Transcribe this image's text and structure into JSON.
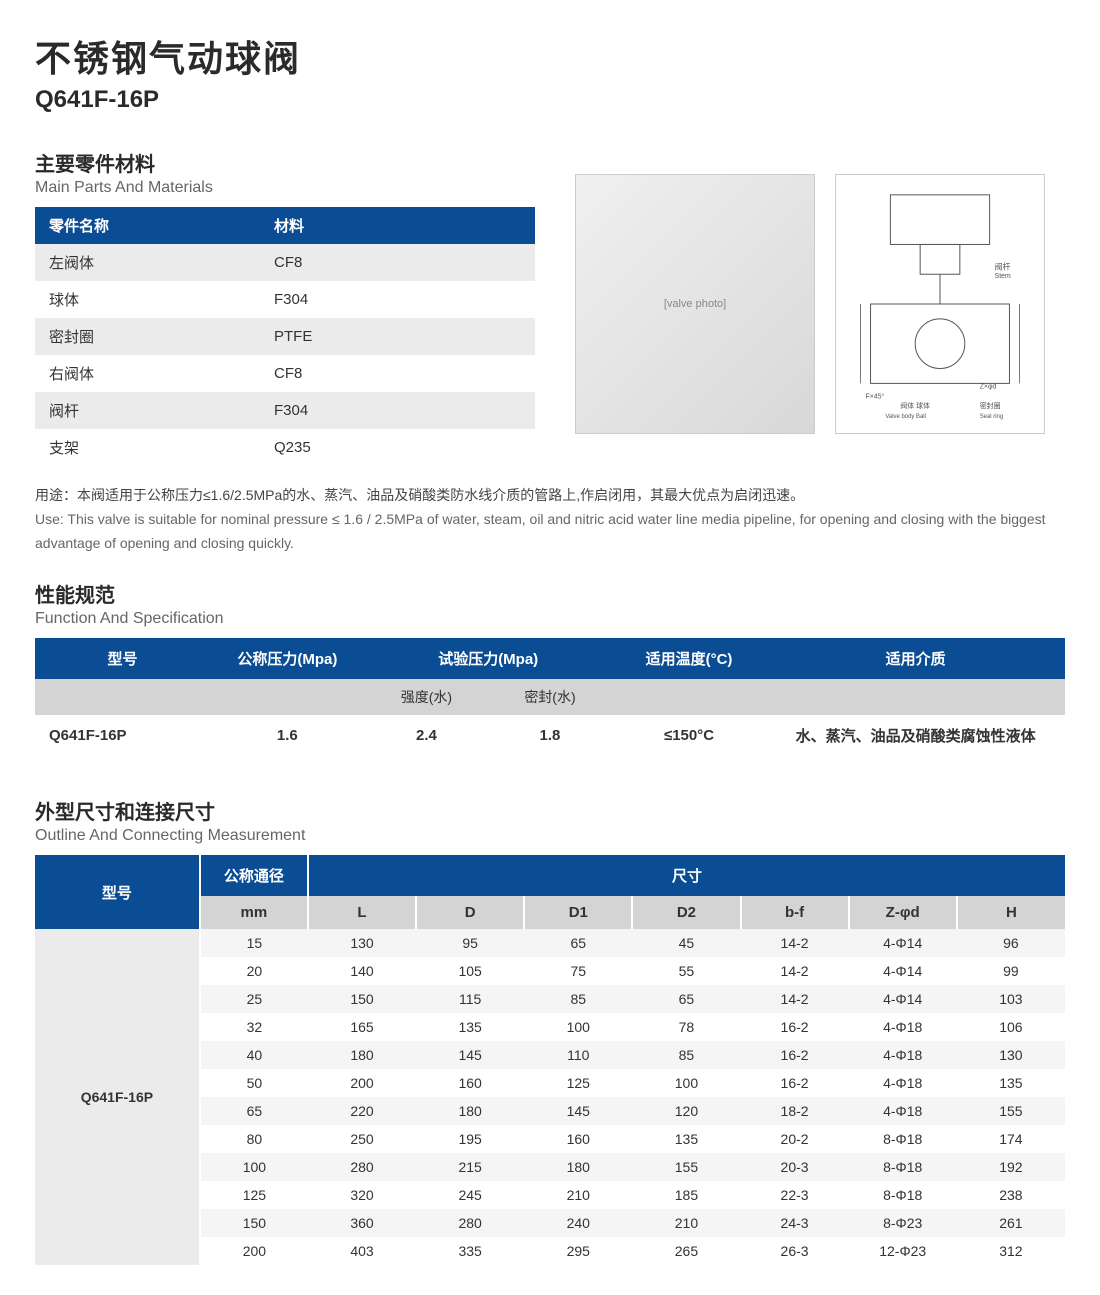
{
  "colors": {
    "header_blue": "#0b4d94",
    "row_grey": "#ebebeb",
    "subhead_grey": "#d4d4d4",
    "text_dark": "#2a2a2a",
    "text_mid": "#666666",
    "bg": "#ffffff"
  },
  "title": {
    "cn": "不锈钢气动球阀",
    "model": "Q641F-16P"
  },
  "parts": {
    "heading_cn": "主要零件材料",
    "heading_en": "Main Parts And Materials",
    "columns": [
      "零件名称",
      "材料"
    ],
    "rows": [
      [
        "左阀体",
        "CF8"
      ],
      [
        "球体",
        "F304"
      ],
      [
        "密封圈",
        "PTFE"
      ],
      [
        "右阀体",
        "CF8"
      ],
      [
        "阀杆",
        "F304"
      ],
      [
        "支架",
        "Q235"
      ]
    ]
  },
  "images": {
    "photo_label": "[valve photo]",
    "diagram_label": "[outline diagram]",
    "diagram_annotations": [
      "阀杆 Stem",
      "阀体 Valve body",
      "球体 Ball",
      "密封圈 Seal ring",
      "Z×φd",
      "F×45°"
    ]
  },
  "usage": {
    "cn": "用途：本阀适用于公称压力≤1.6/2.5MPa的水、蒸汽、油品及硝酸类防水线介质的管路上,作启闭用，其最大优点为启闭迅速。",
    "en": "Use: This valve is suitable for nominal pressure ≤ 1.6 / 2.5MPa of water, steam, oil and nitric acid water line media pipeline, for opening and closing with the biggest advantage of opening and closing quickly."
  },
  "spec": {
    "heading_cn": "性能规范",
    "heading_en": "Function And Specification",
    "headers": [
      "型号",
      "公称压力(Mpa)",
      "试验压力(Mpa)",
      "适用温度(°C)",
      "适用介质"
    ],
    "sub_headers": [
      "强度(水)",
      "密封(水)"
    ],
    "row": {
      "model": "Q641F-16P",
      "nominal_pressure": "1.6",
      "strength": "2.4",
      "seal": "1.8",
      "temp": "≤150°C",
      "media": "水、蒸汽、油品及硝酸类腐蚀性液体"
    }
  },
  "dims": {
    "heading_cn": "外型尺寸和连接尺寸",
    "heading_en": "Outline And Connecting Measurement",
    "header_model": "型号",
    "header_dn": "公称通径",
    "header_size": "尺寸",
    "sub_cols": [
      "mm",
      "L",
      "D",
      "D1",
      "D2",
      "b-f",
      "Z-φd",
      "H"
    ],
    "model": "Q641F-16P",
    "rows": [
      [
        "15",
        "130",
        "95",
        "65",
        "45",
        "14-2",
        "4-Φ14",
        "96"
      ],
      [
        "20",
        "140",
        "105",
        "75",
        "55",
        "14-2",
        "4-Φ14",
        "99"
      ],
      [
        "25",
        "150",
        "115",
        "85",
        "65",
        "14-2",
        "4-Φ14",
        "103"
      ],
      [
        "32",
        "165",
        "135",
        "100",
        "78",
        "16-2",
        "4-Φ18",
        "106"
      ],
      [
        "40",
        "180",
        "145",
        "110",
        "85",
        "16-2",
        "4-Φ18",
        "130"
      ],
      [
        "50",
        "200",
        "160",
        "125",
        "100",
        "16-2",
        "4-Φ18",
        "135"
      ],
      [
        "65",
        "220",
        "180",
        "145",
        "120",
        "18-2",
        "4-Φ18",
        "155"
      ],
      [
        "80",
        "250",
        "195",
        "160",
        "135",
        "20-2",
        "8-Φ18",
        "174"
      ],
      [
        "100",
        "280",
        "215",
        "180",
        "155",
        "20-3",
        "8-Φ18",
        "192"
      ],
      [
        "125",
        "320",
        "245",
        "210",
        "185",
        "22-3",
        "8-Φ18",
        "238"
      ],
      [
        "150",
        "360",
        "280",
        "240",
        "210",
        "24-3",
        "8-Φ23",
        "261"
      ],
      [
        "200",
        "403",
        "335",
        "295",
        "265",
        "26-3",
        "12-Φ23",
        "312"
      ]
    ]
  }
}
